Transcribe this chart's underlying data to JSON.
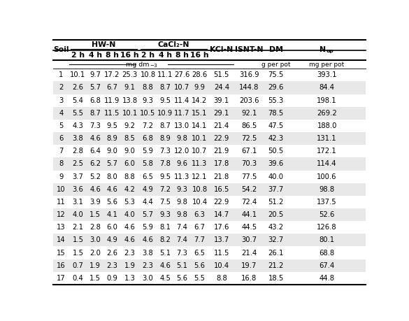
{
  "rows": [
    [
      1,
      10.1,
      9.7,
      17.2,
      25.3,
      10.8,
      11.1,
      27.6,
      28.6,
      51.5,
      316.9,
      75.5,
      393.1
    ],
    [
      2,
      2.6,
      5.7,
      6.7,
      9.1,
      8.8,
      8.7,
      10.7,
      9.9,
      24.4,
      144.8,
      29.6,
      84.4
    ],
    [
      3,
      5.4,
      6.8,
      11.9,
      13.8,
      9.3,
      9.5,
      11.4,
      14.2,
      39.1,
      203.6,
      55.3,
      198.1
    ],
    [
      4,
      5.5,
      8.7,
      11.5,
      10.1,
      10.5,
      10.9,
      11.7,
      15.1,
      29.1,
      92.1,
      78.5,
      269.2
    ],
    [
      5,
      4.3,
      7.3,
      9.5,
      9.2,
      7.2,
      8.7,
      13.0,
      14.1,
      21.4,
      86.5,
      47.5,
      188.0
    ],
    [
      6,
      3.8,
      4.6,
      8.9,
      8.5,
      6.8,
      8.9,
      9.8,
      10.1,
      22.9,
      72.5,
      42.3,
      131.1
    ],
    [
      7,
      2.8,
      6.4,
      9.0,
      9.0,
      5.9,
      7.3,
      12.0,
      10.7,
      21.9,
      67.1,
      50.5,
      172.1
    ],
    [
      8,
      2.5,
      6.2,
      5.7,
      6.0,
      5.8,
      7.8,
      9.6,
      11.3,
      17.8,
      70.3,
      39.6,
      114.4
    ],
    [
      9,
      3.7,
      5.2,
      8.0,
      8.8,
      6.5,
      9.5,
      11.3,
      12.1,
      21.8,
      77.5,
      40.0,
      100.6
    ],
    [
      10,
      3.6,
      4.6,
      4.6,
      4.2,
      4.9,
      7.2,
      9.3,
      10.8,
      16.5,
      54.2,
      37.7,
      98.8
    ],
    [
      11,
      3.1,
      3.9,
      5.6,
      5.3,
      4.4,
      7.5,
      9.8,
      10.4,
      22.9,
      72.4,
      51.2,
      137.5
    ],
    [
      12,
      4.0,
      1.5,
      4.1,
      4.0,
      5.7,
      9.3,
      9.8,
      6.3,
      14.7,
      44.1,
      20.5,
      52.6
    ],
    [
      13,
      2.1,
      2.8,
      6.0,
      4.6,
      5.9,
      8.1,
      7.4,
      6.7,
      17.6,
      44.5,
      43.2,
      126.8
    ],
    [
      14,
      1.5,
      3.0,
      4.9,
      4.6,
      4.6,
      8.2,
      7.4,
      7.7,
      13.7,
      30.7,
      32.7,
      80.1
    ],
    [
      15,
      1.5,
      2.0,
      2.6,
      2.3,
      3.8,
      5.1,
      7.3,
      6.5,
      11.5,
      21.4,
      26.1,
      68.8
    ],
    [
      16,
      0.7,
      1.9,
      2.3,
      1.9,
      2.3,
      4.6,
      5.1,
      5.6,
      10.4,
      19.7,
      21.2,
      67.4
    ],
    [
      17,
      0.4,
      1.5,
      0.9,
      1.3,
      3.0,
      4.5,
      5.6,
      5.5,
      8.8,
      16.8,
      18.5,
      44.8
    ]
  ],
  "bg_gray": "#e8e8e8",
  "bg_white": "#ffffff",
  "font_size": 7.2,
  "header_font_size": 7.8
}
